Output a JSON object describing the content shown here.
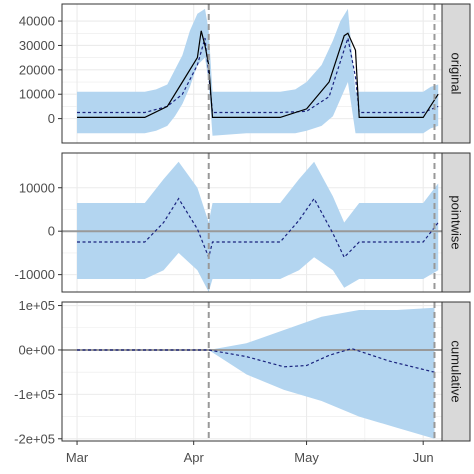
{
  "chart_data": {
    "type": "area",
    "x_axis": {
      "tick_labels": [
        "Mar",
        "Apr",
        "May",
        "Jun"
      ],
      "tick_dates": [
        "2020-03-01",
        "2020-04-01",
        "2020-05-01",
        "2020-06-01"
      ],
      "xlim": [
        "2020-02-26",
        "2020-06-06"
      ]
    },
    "vlines": [
      "2020-04-05",
      "2020-06-04"
    ],
    "colors": {
      "ribbon": "#b3d5f0",
      "mean_line": "#1a237e",
      "observed_line": "#000000",
      "zero_line": "#999999",
      "vline": "#999999",
      "strip": "#d9d9d9",
      "grid": "#ebebeb"
    },
    "panels": [
      {
        "label": "original",
        "ylim": [
          -10000,
          47000
        ],
        "ticks": [
          0,
          10000,
          20000,
          30000,
          40000
        ],
        "tick_labels": [
          "0",
          "10000",
          "20000",
          "30000",
          "40000"
        ],
        "zero_line": false,
        "series": [
          {
            "kind": "ribbon",
            "x": [
              "2020-03-01",
              "2020-03-10",
              "2020-03-19",
              "2020-03-22",
              "2020-03-25",
              "2020-03-27",
              "2020-03-29",
              "2020-03-31",
              "2020-04-02",
              "2020-04-04",
              "2020-04-05",
              "2020-04-06",
              "2020-04-15",
              "2020-04-24",
              "2020-04-28",
              "2020-05-01",
              "2020-05-05",
              "2020-05-08",
              "2020-05-10",
              "2020-05-12",
              "2020-05-14",
              "2020-05-15",
              "2020-05-16",
              "2020-05-25",
              "2020-06-01",
              "2020-06-03",
              "2020-06-05"
            ],
            "lower": [
              -6000,
              -6000,
              -6000,
              -5000,
              -3000,
              1000,
              6000,
              13000,
              22000,
              25000,
              15000,
              -7000,
              -6000,
              -6000,
              -6000,
              -5000,
              -3000,
              1000,
              8000,
              15000,
              -6000,
              -6000,
              -6000,
              -6000,
              -6000,
              -4000,
              -3000
            ],
            "upper": [
              11000,
              11000,
              11000,
              12000,
              14000,
              20000,
              26000,
              36000,
              43000,
              45000,
              36000,
              11000,
              11000,
              11000,
              12000,
              15000,
              22000,
              32000,
              40000,
              45000,
              11000,
              11000,
              11000,
              11000,
              11000,
              13000,
              14000
            ]
          },
          {
            "kind": "mean",
            "x": [
              "2020-03-01",
              "2020-03-19",
              "2020-03-25",
              "2020-03-29",
              "2020-04-02",
              "2020-04-04",
              "2020-04-05",
              "2020-04-06",
              "2020-04-24",
              "2020-05-01",
              "2020-05-07",
              "2020-05-12",
              "2020-05-14",
              "2020-05-15",
              "2020-06-01",
              "2020-06-05"
            ],
            "y": [
              2500,
              2500,
              5000,
              10000,
              22000,
              33000,
              18000,
              2500,
              2500,
              3000,
              9000,
              33000,
              17000,
              2500,
              2500,
              5000
            ]
          },
          {
            "kind": "observed",
            "x": [
              "2020-03-01",
              "2020-03-19",
              "2020-03-25",
              "2020-03-29",
              "2020-04-02",
              "2020-04-03",
              "2020-04-04",
              "2020-04-05",
              "2020-04-06",
              "2020-04-24",
              "2020-05-01",
              "2020-05-07",
              "2020-05-11",
              "2020-05-12",
              "2020-05-14",
              "2020-05-15",
              "2020-06-01",
              "2020-06-05"
            ],
            "y": [
              500,
              500,
              5000,
              15000,
              25000,
              36000,
              30000,
              22000,
              500,
              500,
              4000,
              15000,
              34000,
              35000,
              28000,
              500,
              500,
              10000
            ]
          }
        ]
      },
      {
        "label": "pointwise",
        "ylim": [
          -14000,
          18000
        ],
        "ticks": [
          -10000,
          0,
          10000
        ],
        "tick_labels": [
          "-10000",
          "0",
          "10000"
        ],
        "zero_line": true,
        "series": [
          {
            "kind": "ribbon",
            "x": [
              "2020-03-01",
              "2020-03-19",
              "2020-03-24",
              "2020-03-28",
              "2020-04-02",
              "2020-04-05",
              "2020-04-06",
              "2020-04-24",
              "2020-04-29",
              "2020-05-03",
              "2020-05-08",
              "2020-05-11",
              "2020-05-15",
              "2020-06-01",
              "2020-06-05"
            ],
            "lower": [
              -11000,
              -11000,
              -9000,
              -5000,
              -9000,
              -14000,
              -11000,
              -11000,
              -9000,
              -6000,
              -9000,
              -13000,
              -11000,
              -11000,
              -9000
            ],
            "upper": [
              6500,
              6500,
              12000,
              16000,
              10000,
              2000,
              6500,
              6500,
              12000,
              16000,
              8000,
              2000,
              6500,
              6500,
              11000
            ]
          },
          {
            "kind": "mean",
            "x": [
              "2020-03-01",
              "2020-03-19",
              "2020-03-24",
              "2020-03-28",
              "2020-04-02",
              "2020-04-05",
              "2020-04-06",
              "2020-04-24",
              "2020-04-29",
              "2020-05-03",
              "2020-05-08",
              "2020-05-11",
              "2020-05-15",
              "2020-06-01",
              "2020-06-05"
            ],
            "y": [
              -2500,
              -2500,
              2000,
              7500,
              500,
              -6000,
              -2500,
              -2500,
              2500,
              7500,
              -500,
              -6000,
              -2500,
              -2500,
              2000
            ]
          }
        ]
      },
      {
        "label": "cumulative",
        "ylim": [
          -205000,
          108000
        ],
        "ticks": [
          100000,
          0,
          -100000,
          -200000
        ],
        "tick_labels": [
          "1e+05",
          "0e+00",
          "-1e+05",
          "-2e+05"
        ],
        "zero_line": true,
        "series": [
          {
            "kind": "ribbon",
            "x": [
              "2020-03-01",
              "2020-04-05",
              "2020-04-15",
              "2020-04-25",
              "2020-05-05",
              "2020-05-15",
              "2020-05-25",
              "2020-06-04"
            ],
            "lower": [
              0,
              0,
              -55000,
              -90000,
              -115000,
              -150000,
              -175000,
              -200000
            ],
            "upper": [
              0,
              0,
              15000,
              45000,
              75000,
              90000,
              90000,
              95000
            ]
          },
          {
            "kind": "mean",
            "x": [
              "2020-03-01",
              "2020-04-05",
              "2020-04-15",
              "2020-04-25",
              "2020-05-01",
              "2020-05-07",
              "2020-05-13",
              "2020-05-23",
              "2020-06-04"
            ],
            "y": [
              0,
              0,
              -15000,
              -38000,
              -35000,
              -12000,
              3000,
              -25000,
              -50000
            ]
          }
        ]
      }
    ]
  }
}
